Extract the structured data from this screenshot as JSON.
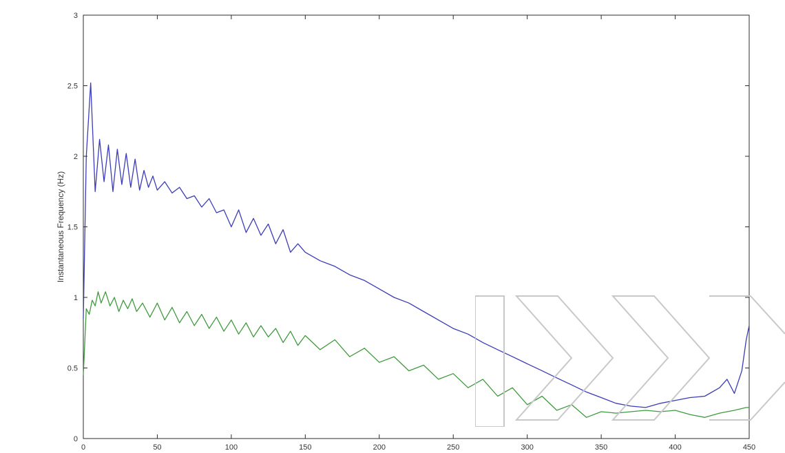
{
  "chart_data": {
    "type": "line",
    "title": "",
    "xlabel": "",
    "ylabel": "Instantaneous Frequency (Hz)",
    "xlim": [
      0,
      450
    ],
    "ylim": [
      0,
      3
    ],
    "xticks": [
      0,
      50,
      100,
      150,
      200,
      250,
      300,
      350,
      400,
      450
    ],
    "yticks": [
      0,
      0.5,
      1,
      1.5,
      2,
      2.5,
      3
    ],
    "xtick_labels": [
      "0",
      "50",
      "100",
      "150",
      "200",
      "250",
      "300",
      "350",
      "400",
      "450"
    ],
    "ytick_labels": [
      "0",
      "0.5",
      "1",
      "1.5",
      "2",
      "2.5",
      "3"
    ],
    "grid": false,
    "series": [
      {
        "color": "#3b3bb8",
        "x": [
          0,
          2,
          5,
          8,
          11,
          14,
          17,
          20,
          23,
          26,
          29,
          32,
          35,
          38,
          41,
          44,
          47,
          50,
          55,
          60,
          65,
          70,
          75,
          80,
          85,
          90,
          95,
          100,
          105,
          110,
          115,
          120,
          125,
          130,
          135,
          140,
          145,
          150,
          160,
          170,
          180,
          190,
          200,
          210,
          220,
          230,
          240,
          250,
          260,
          270,
          280,
          290,
          300,
          310,
          320,
          330,
          340,
          350,
          360,
          370,
          380,
          390,
          400,
          410,
          420,
          430,
          435,
          440,
          445,
          448,
          450
        ],
        "y": [
          0.85,
          2.0,
          2.52,
          1.75,
          2.12,
          1.82,
          2.08,
          1.75,
          2.05,
          1.8,
          2.02,
          1.78,
          1.98,
          1.76,
          1.9,
          1.78,
          1.86,
          1.76,
          1.82,
          1.74,
          1.78,
          1.7,
          1.72,
          1.64,
          1.7,
          1.6,
          1.62,
          1.5,
          1.62,
          1.46,
          1.56,
          1.44,
          1.52,
          1.38,
          1.48,
          1.32,
          1.38,
          1.32,
          1.26,
          1.22,
          1.16,
          1.12,
          1.06,
          1.0,
          0.96,
          0.9,
          0.84,
          0.78,
          0.74,
          0.68,
          0.63,
          0.58,
          0.53,
          0.48,
          0.43,
          0.38,
          0.33,
          0.29,
          0.25,
          0.23,
          0.22,
          0.25,
          0.27,
          0.29,
          0.3,
          0.36,
          0.42,
          0.32,
          0.48,
          0.7,
          0.8
        ]
      },
      {
        "color": "#3f9a3f",
        "x": [
          0,
          2,
          4,
          6,
          8,
          10,
          12,
          15,
          18,
          21,
          24,
          27,
          30,
          33,
          36,
          40,
          45,
          50,
          55,
          60,
          65,
          70,
          75,
          80,
          85,
          90,
          95,
          100,
          105,
          110,
          115,
          120,
          125,
          130,
          135,
          140,
          145,
          150,
          160,
          170,
          180,
          190,
          200,
          210,
          220,
          230,
          240,
          250,
          260,
          270,
          280,
          290,
          300,
          310,
          320,
          330,
          340,
          350,
          360,
          370,
          380,
          390,
          400,
          410,
          420,
          430,
          440,
          448,
          450
        ],
        "y": [
          0.45,
          0.92,
          0.88,
          0.98,
          0.94,
          1.04,
          0.96,
          1.04,
          0.94,
          1.0,
          0.9,
          0.98,
          0.92,
          0.99,
          0.9,
          0.96,
          0.86,
          0.96,
          0.84,
          0.93,
          0.82,
          0.9,
          0.8,
          0.88,
          0.78,
          0.86,
          0.76,
          0.84,
          0.74,
          0.82,
          0.72,
          0.8,
          0.72,
          0.78,
          0.68,
          0.76,
          0.66,
          0.73,
          0.63,
          0.7,
          0.58,
          0.64,
          0.54,
          0.58,
          0.48,
          0.52,
          0.42,
          0.46,
          0.36,
          0.42,
          0.3,
          0.36,
          0.24,
          0.3,
          0.2,
          0.24,
          0.15,
          0.19,
          0.18,
          0.19,
          0.2,
          0.19,
          0.2,
          0.17,
          0.15,
          0.18,
          0.2,
          0.22,
          0.22
        ]
      }
    ]
  }
}
